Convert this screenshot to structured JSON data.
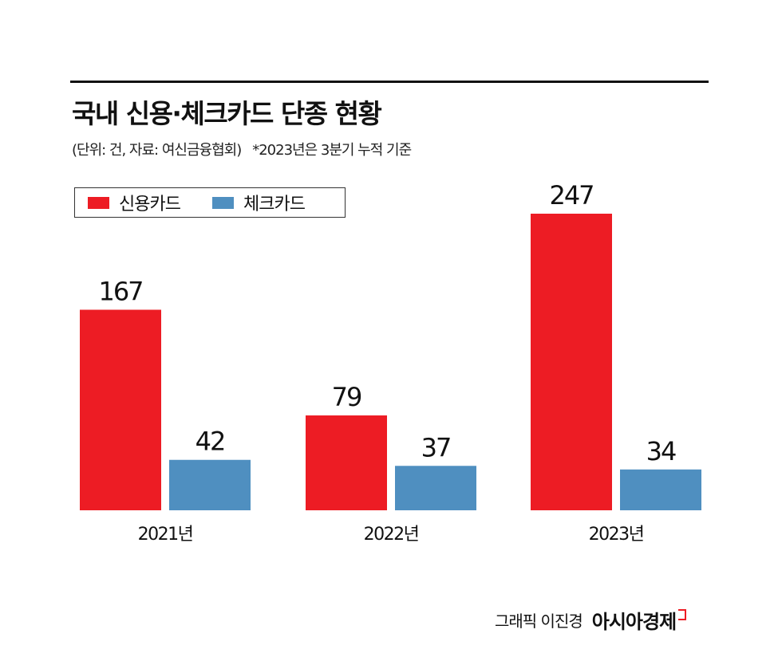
{
  "title": "국내 신용·체크카드 단종 현황",
  "subtitle": "(단위: 건, 자료: 여신금융협회)",
  "note": "*2023년은 3분기 누적 기준",
  "credit": {
    "byline": "그래픽 이진경",
    "brand": "아시아경제"
  },
  "chart_data": {
    "type": "bar",
    "categories": [
      "2021년",
      "2022년",
      "2023년"
    ],
    "series": [
      {
        "name": "신용카드",
        "color": "#ED1C24",
        "values": [
          167,
          79,
          247
        ]
      },
      {
        "name": "체크카드",
        "color": "#4F8FC0",
        "values": [
          42,
          37,
          34
        ]
      }
    ],
    "ylim": [
      0,
      247
    ],
    "grid": false,
    "legend": "top-left",
    "data_labels": true
  }
}
